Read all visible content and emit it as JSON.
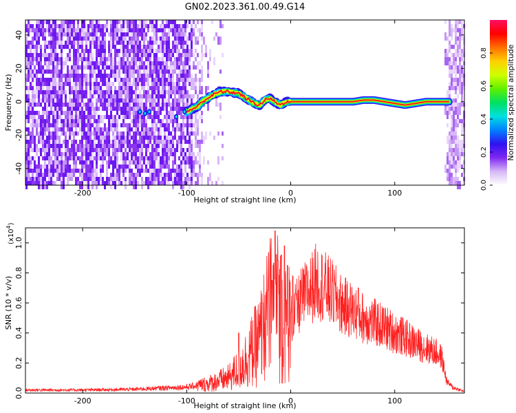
{
  "title": "GN02.2023.361.00.49.G14",
  "chart_data": [
    {
      "type": "heatmap",
      "xlabel": "Height of straight line (km)",
      "ylabel": "Frequency (Hz)",
      "xlim": [
        -255,
        167
      ],
      "ylim": [
        -50,
        49
      ],
      "xticks": [
        -200,
        -100,
        0,
        100
      ],
      "yticks": [
        -40,
        -20,
        0,
        20,
        40
      ],
      "colorbar": {
        "label": "Normalized spectral amplitude",
        "range": [
          0,
          1
        ],
        "ticks": [
          "0.0",
          "0.2",
          "0.4",
          "0.6",
          "0.8"
        ],
        "colormap": [
          "#ffffff",
          "#d6b8f6",
          "#7f27f2",
          "#2e12f0",
          "#0080ff",
          "#00e0e0",
          "#00e060",
          "#60f000",
          "#d0ff00",
          "#ffd000",
          "#ff7000",
          "#ff0000",
          "#ff1060"
        ]
      },
      "ridge": [
        [
          -145,
          -6
        ],
        [
          -135,
          -7
        ],
        [
          -110,
          -8
        ],
        [
          -100,
          -6
        ],
        [
          -90,
          -3
        ],
        [
          -85,
          0
        ],
        [
          -80,
          2
        ],
        [
          -75,
          4
        ],
        [
          -68,
          6
        ],
        [
          -60,
          6
        ],
        [
          -50,
          5
        ],
        [
          -45,
          3
        ],
        [
          -40,
          1
        ],
        [
          -35,
          -1
        ],
        [
          -30,
          -2
        ],
        [
          -25,
          1
        ],
        [
          -20,
          2
        ],
        [
          -15,
          0
        ],
        [
          -10,
          -2
        ],
        [
          -5,
          0
        ],
        [
          0,
          0
        ],
        [
          20,
          0
        ],
        [
          40,
          0
        ],
        [
          50,
          0
        ],
        [
          60,
          0
        ],
        [
          70,
          1
        ],
        [
          80,
          1
        ],
        [
          90,
          0
        ],
        [
          100,
          -1
        ],
        [
          110,
          -2
        ],
        [
          120,
          -1
        ],
        [
          130,
          0
        ],
        [
          140,
          0
        ],
        [
          150,
          0
        ]
      ]
    },
    {
      "type": "line",
      "color": "#ff2020",
      "xlabel": "Height of straight line (km)",
      "ylabel": "SNR (10 * v/v)",
      "multiplier": "(x10",
      "multiplier_exp": "4",
      "multiplier_close": ")",
      "xlim": [
        -255,
        167
      ],
      "ylim": [
        0,
        1.1
      ],
      "xticks": [
        -200,
        -100,
        0,
        100
      ],
      "yticks": [
        "0.0",
        "0.2",
        "0.4",
        "0.6",
        "0.8",
        "1.0"
      ],
      "envelope": [
        [
          -255,
          0.02
        ],
        [
          -200,
          0.02
        ],
        [
          -150,
          0.025
        ],
        [
          -100,
          0.04
        ],
        [
          -80,
          0.06
        ],
        [
          -60,
          0.1
        ],
        [
          -50,
          0.16
        ],
        [
          -40,
          0.25
        ],
        [
          -30,
          0.35
        ],
        [
          -25,
          0.45
        ],
        [
          -20,
          0.55
        ],
        [
          -15,
          0.6
        ],
        [
          -10,
          0.55
        ],
        [
          -5,
          0.45
        ],
        [
          0,
          0.48
        ],
        [
          10,
          0.62
        ],
        [
          20,
          0.7
        ],
        [
          25,
          0.75
        ],
        [
          30,
          0.72
        ],
        [
          40,
          0.66
        ],
        [
          50,
          0.58
        ],
        [
          60,
          0.55
        ],
        [
          70,
          0.5
        ],
        [
          80,
          0.47
        ],
        [
          90,
          0.44
        ],
        [
          100,
          0.4
        ],
        [
          110,
          0.37
        ],
        [
          120,
          0.33
        ],
        [
          130,
          0.3
        ],
        [
          140,
          0.27
        ],
        [
          145,
          0.24
        ],
        [
          150,
          0.08
        ],
        [
          155,
          0.04
        ],
        [
          167,
          0.01
        ]
      ],
      "peaks": [
        [
          -50,
          0.4
        ],
        [
          -27,
          0.6
        ],
        [
          -22,
          0.68
        ],
        [
          -18,
          0.75
        ],
        [
          -15,
          1.08
        ],
        [
          -12,
          0.88
        ],
        [
          -9,
          0.92
        ],
        [
          -6,
          0.98
        ],
        [
          -3,
          0.85
        ],
        [
          2,
          0.78
        ],
        [
          5,
          0.66
        ],
        [
          25,
          0.82
        ],
        [
          60,
          0.65
        ],
        [
          65,
          0.7
        ]
      ]
    }
  ]
}
